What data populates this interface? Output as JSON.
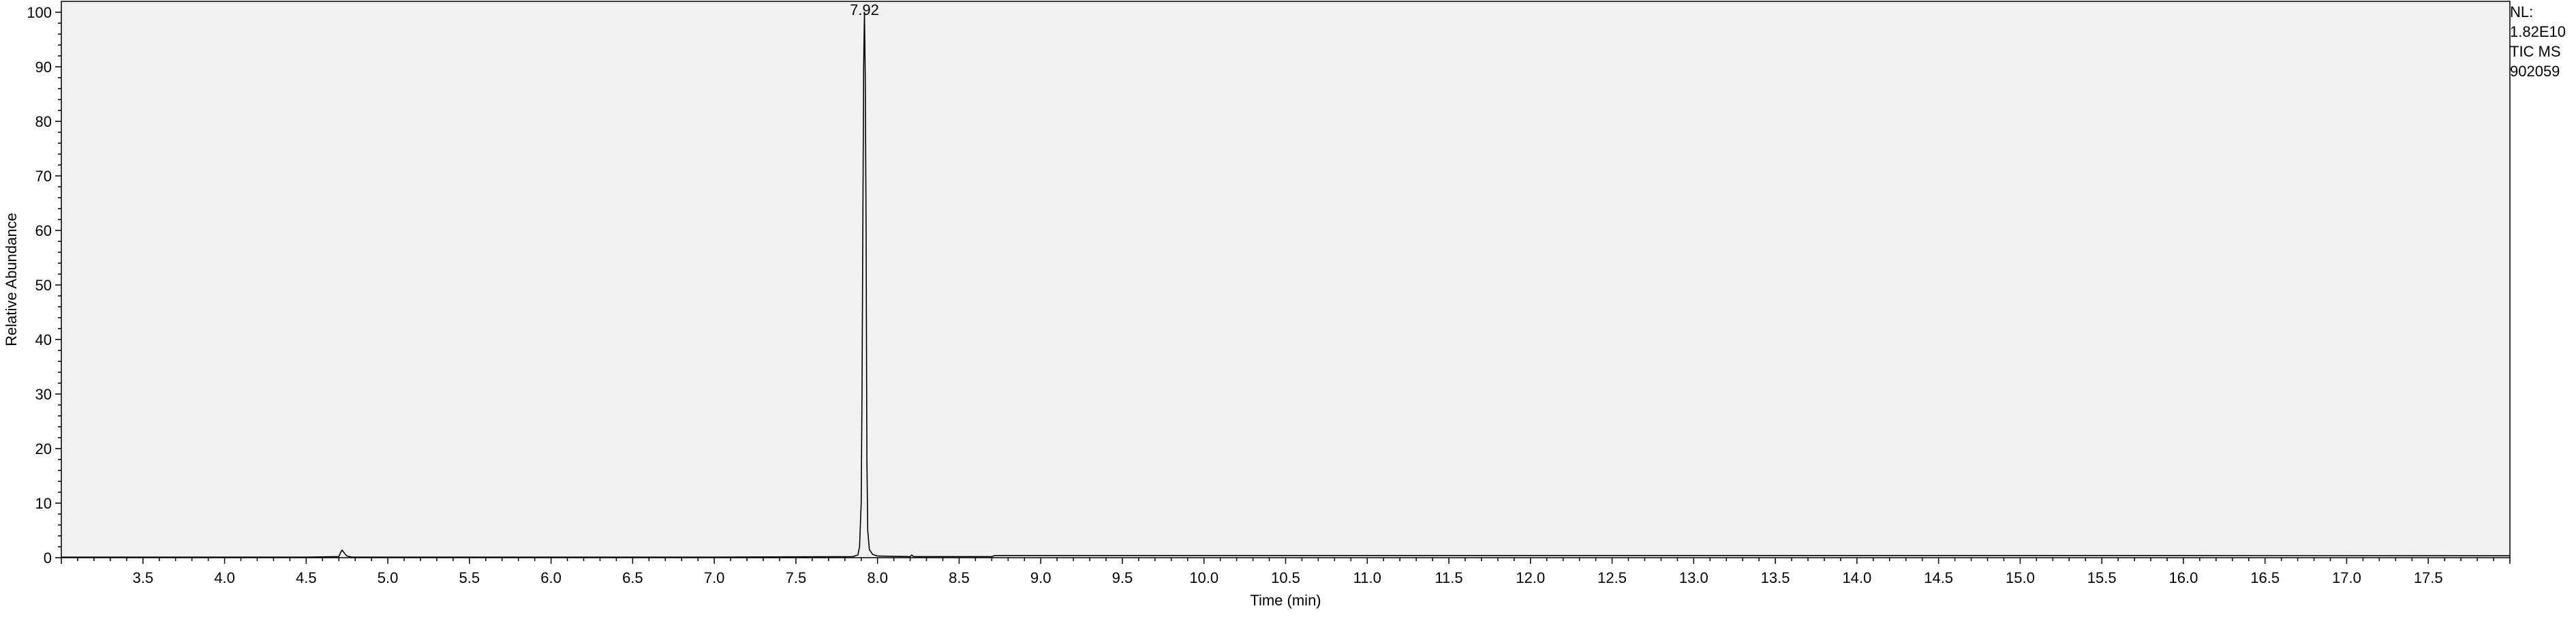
{
  "chart_data": {
    "type": "line",
    "title": "",
    "xlabel": "Time (min)",
    "ylabel": "Relative Abundance",
    "xlim": [
      3.0,
      18.0
    ],
    "ylim": [
      0,
      102
    ],
    "x_ticks": [
      "3.5",
      "4.0",
      "4.5",
      "5.0",
      "5.5",
      "6.0",
      "6.5",
      "7.0",
      "7.5",
      "8.0",
      "8.5",
      "9.0",
      "9.5",
      "10.0",
      "10.5",
      "11.0",
      "11.5",
      "12.0",
      "12.5",
      "13.0",
      "13.5",
      "14.0",
      "14.5",
      "15.0",
      "15.5",
      "16.0",
      "16.5",
      "17.0",
      "17.5"
    ],
    "y_ticks": [
      "0",
      "10",
      "20",
      "30",
      "40",
      "50",
      "60",
      "70",
      "80",
      "90",
      "100"
    ],
    "grid": false,
    "peak_label": "7.92",
    "series": [
      {
        "x": [
          3.0,
          4.5,
          4.7,
          4.71,
          4.72,
          4.73,
          4.74,
          4.75,
          4.78,
          7.0,
          7.85,
          7.88,
          7.89,
          7.9,
          7.905,
          7.91,
          7.915,
          7.92,
          7.925,
          7.93,
          7.935,
          7.94,
          7.95,
          7.97,
          8.0,
          8.2,
          8.21,
          8.22,
          8.7,
          8.72,
          12.0,
          16.0,
          18.0
        ],
        "y": [
          0.1,
          0.1,
          0.2,
          0.9,
          1.4,
          1.0,
          0.6,
          0.3,
          0.1,
          0.1,
          0.2,
          0.5,
          2.0,
          10.0,
          30.0,
          60.0,
          90.0,
          100.0,
          88.0,
          60.0,
          18.0,
          5.0,
          1.5,
          0.6,
          0.3,
          0.2,
          0.5,
          0.2,
          0.2,
          0.4,
          0.4,
          0.4,
          0.35
        ]
      }
    ]
  },
  "nl": {
    "label": "NL:",
    "value": "1.82E10",
    "trace": "TIC  MS",
    "sample": "902059"
  }
}
